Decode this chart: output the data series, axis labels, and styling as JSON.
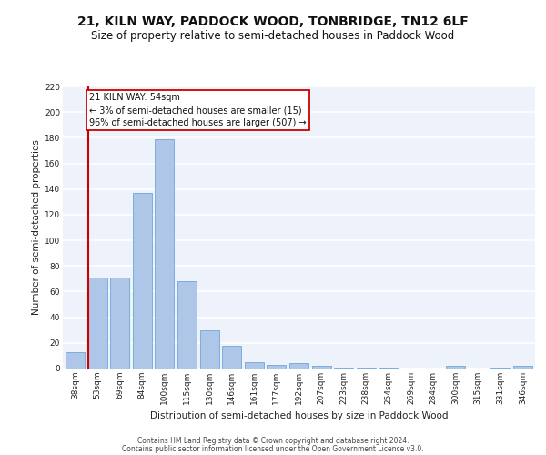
{
  "title": "21, KILN WAY, PADDOCK WOOD, TONBRIDGE, TN12 6LF",
  "subtitle": "Size of property relative to semi-detached houses in Paddock Wood",
  "xlabel": "Distribution of semi-detached houses by size in Paddock Wood",
  "ylabel": "Number of semi-detached properties",
  "categories": [
    "38sqm",
    "53sqm",
    "69sqm",
    "84sqm",
    "100sqm",
    "115sqm",
    "130sqm",
    "146sqm",
    "161sqm",
    "177sqm",
    "192sqm",
    "207sqm",
    "223sqm",
    "238sqm",
    "254sqm",
    "269sqm",
    "284sqm",
    "300sqm",
    "315sqm",
    "331sqm",
    "346sqm"
  ],
  "values": [
    13,
    71,
    71,
    137,
    179,
    68,
    30,
    18,
    5,
    3,
    4,
    2,
    1,
    1,
    1,
    0,
    0,
    2,
    0,
    1,
    2
  ],
  "bar_color": "#aec6e8",
  "bar_edge_color": "#5b9bd5",
  "highlight_color": "#cc0000",
  "annotation_text": "21 KILN WAY: 54sqm\n← 3% of semi-detached houses are smaller (15)\n96% of semi-detached houses are larger (507) →",
  "annotation_box_color": "#ffffff",
  "annotation_box_edge": "#cc0000",
  "ylim": [
    0,
    220
  ],
  "yticks": [
    0,
    20,
    40,
    60,
    80,
    100,
    120,
    140,
    160,
    180,
    200,
    220
  ],
  "footer_line1": "Contains HM Land Registry data © Crown copyright and database right 2024.",
  "footer_line2": "Contains public sector information licensed under the Open Government Licence v3.0.",
  "bg_color": "#eef2fb",
  "grid_color": "#ffffff",
  "title_fontsize": 10,
  "subtitle_fontsize": 8.5,
  "axis_label_fontsize": 7.5,
  "tick_fontsize": 6.5,
  "annotation_fontsize": 7,
  "footer_fontsize": 5.5
}
